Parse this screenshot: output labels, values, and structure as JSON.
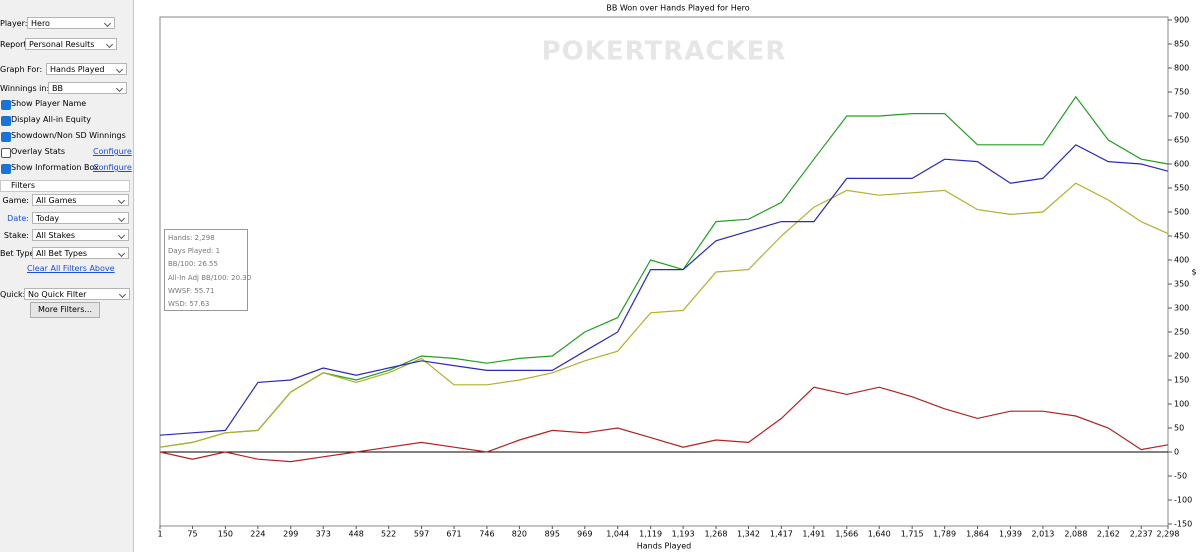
{
  "sidebar": {
    "player_label": "Player:",
    "player": "Hero",
    "report_label": "Report:",
    "report": "Personal Results",
    "graph_for_label": "Graph For:",
    "graph_for": "Hands Played",
    "winnings_label": "Winnings in:",
    "winnings": "BB",
    "checkboxes": [
      {
        "label": "Show Player Name",
        "checked": true
      },
      {
        "label": "Display All-in Equity",
        "checked": true
      },
      {
        "label": "Showdown/Non SD Winnings",
        "checked": true
      },
      {
        "label": "Overlay Stats",
        "checked": false,
        "link": "Configure"
      },
      {
        "label": "Show Information Box",
        "checked": true,
        "link": "Configure"
      }
    ],
    "filters_title": "Filters",
    "filters": [
      {
        "label": "Game:",
        "value": "All Games"
      },
      {
        "label": "Date:",
        "value": "Today"
      },
      {
        "label": "Stake:",
        "value": "All Stakes"
      },
      {
        "label": "Bet Type:",
        "value": "All Bet Types"
      }
    ],
    "clear_link": "Clear All Filters Above",
    "quick_label": "Quick:",
    "quick": "No Quick Filter",
    "more_button": "More Filters..."
  },
  "info_box": [
    "Hands: 2,298",
    "Days Played: 1",
    "BB/100: 26.55",
    "All-In Adj BB/100: 20.30",
    "WWSF: 55.71",
    "WSD: 57.63"
  ],
  "watermark": "POKERTRACKER",
  "chart_data": {
    "type": "line",
    "title": "BB Won over Hands Played for Hero",
    "x_label": "Hands Played",
    "y_label": "$",
    "grid": false,
    "xlim": [
      1,
      2298
    ],
    "ylim": [
      -150,
      900
    ],
    "xticks": [
      1,
      75,
      150,
      224,
      299,
      373,
      448,
      522,
      597,
      671,
      746,
      820,
      895,
      969,
      {
        "value": 1044,
        "label": "1,044"
      },
      {
        "value": 1119,
        "label": "1,119"
      },
      {
        "value": 1193,
        "label": "1,193"
      },
      {
        "value": 1268,
        "label": "1,268"
      },
      {
        "value": 1342,
        "label": "1,342"
      },
      {
        "value": 1417,
        "label": "1,417"
      },
      {
        "value": 1491,
        "label": "1,491"
      },
      {
        "value": 1566,
        "label": "1,566"
      },
      {
        "value": 1640,
        "label": "1,640"
      },
      {
        "value": 1715,
        "label": "1,715"
      },
      {
        "value": 1789,
        "label": "1,789"
      },
      {
        "value": 1864,
        "label": "1,864"
      },
      {
        "value": 1939,
        "label": "1,939"
      },
      {
        "value": 2013,
        "label": "2,013"
      },
      {
        "value": 2088,
        "label": "2,088"
      },
      {
        "value": 2162,
        "label": "2,162"
      },
      {
        "value": 2237,
        "label": "2,237"
      },
      {
        "value": 2298,
        "label": "2,298"
      }
    ],
    "yticks": [
      -150,
      -100,
      -50,
      0,
      50,
      100,
      150,
      200,
      250,
      300,
      350,
      400,
      450,
      500,
      550,
      600,
      650,
      700,
      750,
      800,
      850,
      900
    ],
    "x": [
      1,
      75,
      150,
      224,
      299,
      373,
      448,
      522,
      597,
      671,
      746,
      820,
      895,
      969,
      1044,
      1119,
      1193,
      1268,
      1342,
      1417,
      1491,
      1566,
      1640,
      1715,
      1789,
      1864,
      1939,
      2013,
      2088,
      2162,
      2237,
      2298
    ],
    "series": [
      {
        "color": "#22a022",
        "values": [
          10,
          20,
          40,
          45,
          125,
          165,
          150,
          170,
          200,
          195,
          185,
          195,
          200,
          250,
          280,
          400,
          380,
          480,
          485,
          520,
          610,
          700,
          700,
          705,
          705,
          640,
          640,
          640,
          740,
          650,
          610,
          600
        ]
      },
      {
        "color": "#b3b02a",
        "values": [
          10,
          20,
          40,
          45,
          125,
          165,
          145,
          165,
          195,
          140,
          140,
          150,
          165,
          190,
          210,
          290,
          295,
          375,
          380,
          450,
          510,
          545,
          535,
          540,
          545,
          505,
          495,
          500,
          560,
          525,
          480,
          455
        ]
      },
      {
        "color": "#2a2ab8",
        "values": [
          35,
          40,
          45,
          145,
          150,
          175,
          160,
          175,
          190,
          180,
          170,
          170,
          170,
          210,
          250,
          380,
          380,
          440,
          460,
          480,
          480,
          570,
          570,
          570,
          610,
          605,
          560,
          570,
          640,
          605,
          600,
          585
        ]
      },
      {
        "color": "#b22222",
        "values": [
          0,
          -15,
          0,
          -15,
          -20,
          -10,
          0,
          10,
          20,
          10,
          0,
          25,
          45,
          40,
          50,
          30,
          10,
          25,
          20,
          70,
          135,
          120,
          135,
          115,
          90,
          70,
          85,
          85,
          75,
          50,
          5,
          15
        ]
      }
    ]
  }
}
